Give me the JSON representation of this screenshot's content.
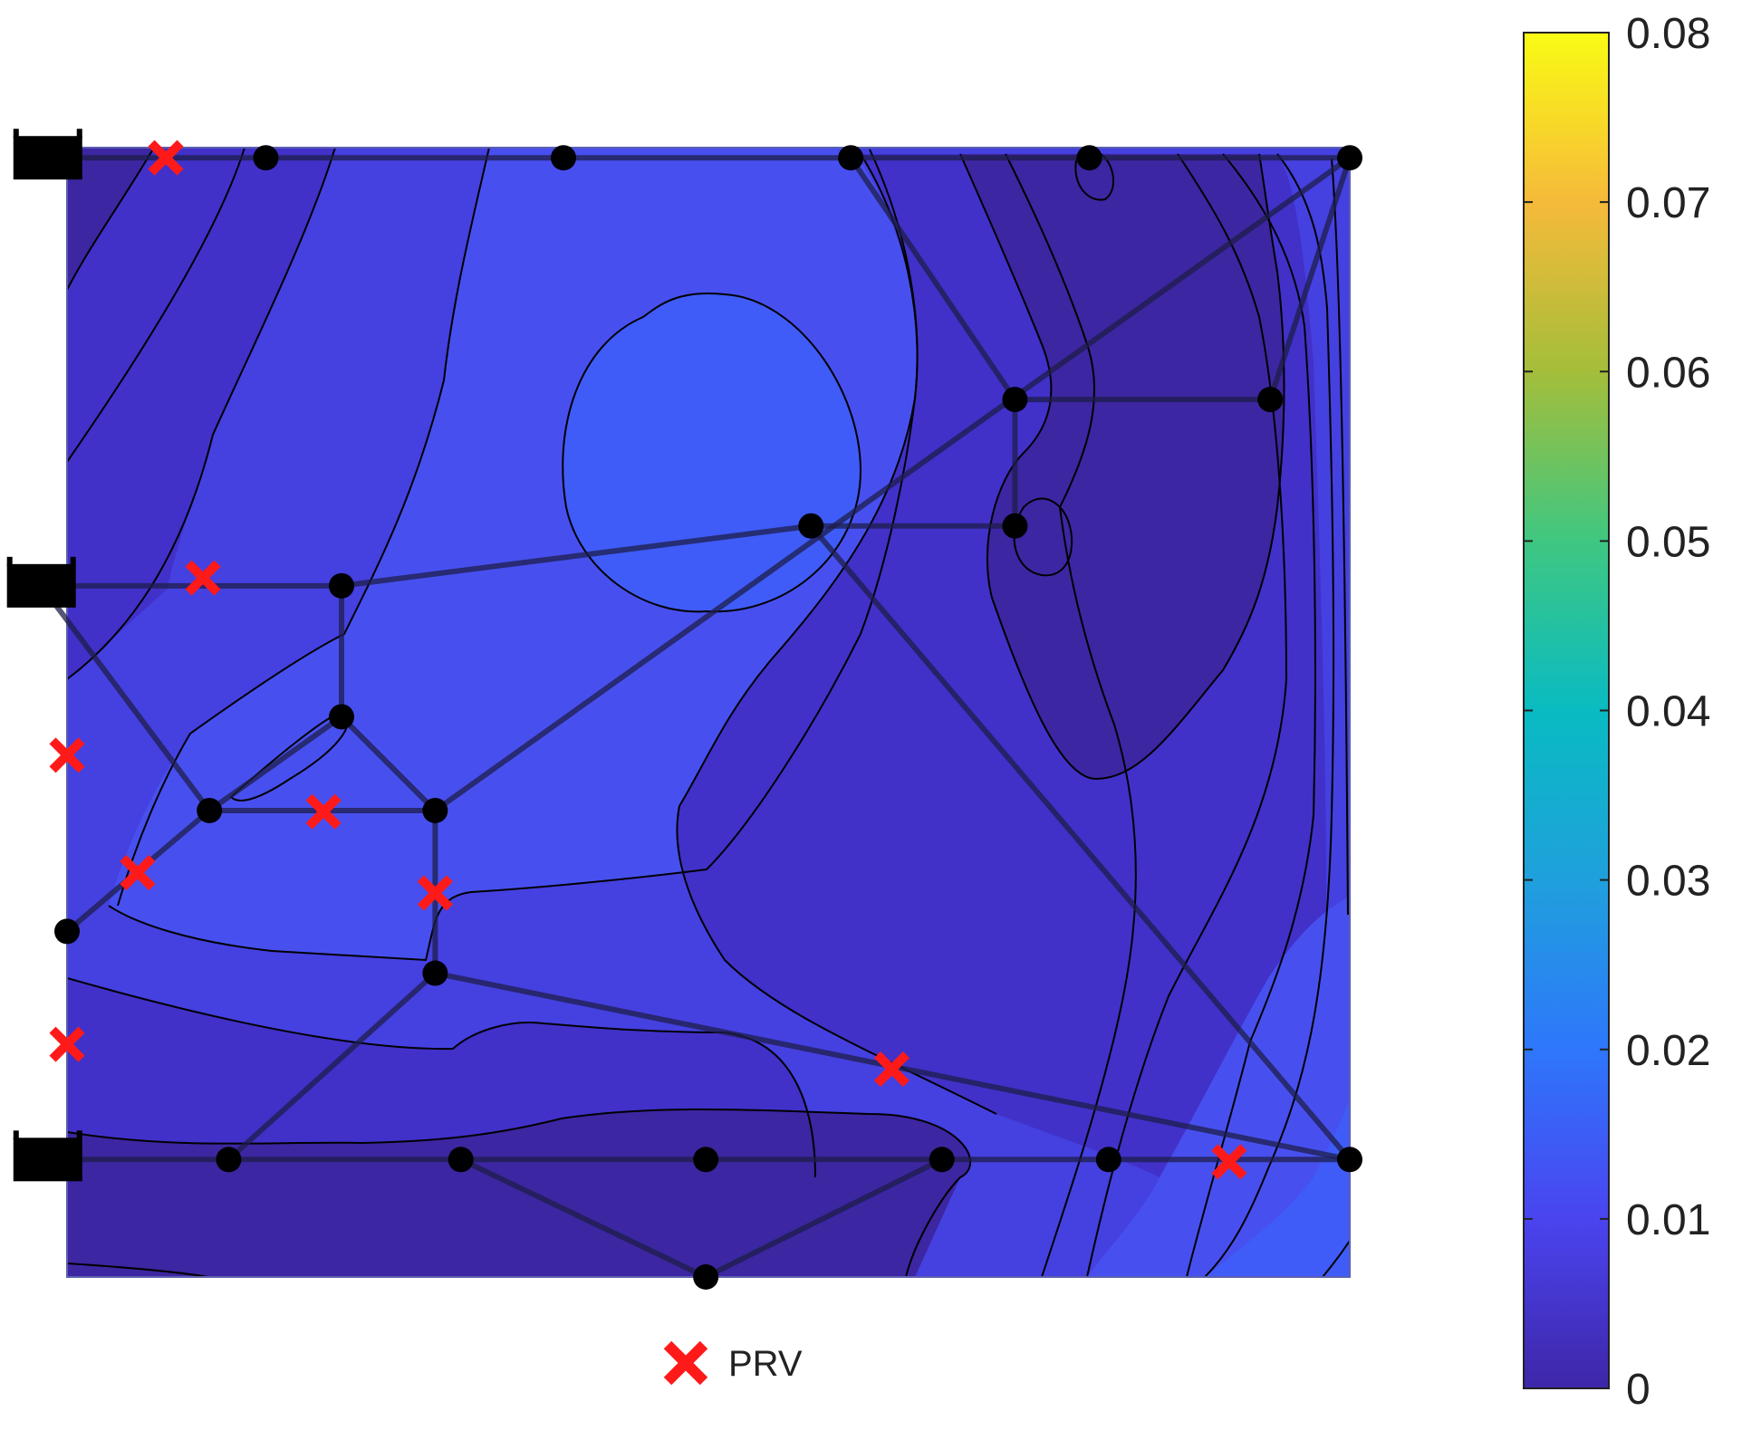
{
  "chart_data": {
    "type": "heatmap",
    "title": "",
    "xlabel": "",
    "ylabel": "",
    "colorbar": {
      "min": 0,
      "max": 0.08,
      "ticks": [
        "0",
        "0.01",
        "0.02",
        "0.03",
        "0.04",
        "0.05",
        "0.06",
        "0.07",
        "0.08"
      ],
      "colormap": "parula"
    },
    "map_extent": {
      "x": [
        0,
        100
      ],
      "y": [
        0,
        100
      ]
    },
    "field_colors": {
      "lowest": "#3d26a1",
      "level_1": "#4131c9",
      "level_2": "#4540e0",
      "level_3": "#4750ef",
      "highest": "#3f5cf8"
    },
    "nodes": [
      {
        "x": 15.5,
        "y": 99.1
      },
      {
        "x": 38.7,
        "y": 99.1
      },
      {
        "x": 61.1,
        "y": 99.1
      },
      {
        "x": 79.7,
        "y": 99.1
      },
      {
        "x": 100.0,
        "y": 99.1
      },
      {
        "x": 73.9,
        "y": 77.7
      },
      {
        "x": 93.8,
        "y": 77.7
      },
      {
        "x": 58.0,
        "y": 66.5
      },
      {
        "x": 73.9,
        "y": 66.5
      },
      {
        "x": 21.4,
        "y": 61.2
      },
      {
        "x": 21.4,
        "y": 49.6
      },
      {
        "x": 11.1,
        "y": 41.3
      },
      {
        "x": 28.7,
        "y": 41.3
      },
      {
        "x": 0.0,
        "y": 30.6
      },
      {
        "x": 28.7,
        "y": 26.9
      },
      {
        "x": 12.6,
        "y": 10.4
      },
      {
        "x": 30.7,
        "y": 10.4
      },
      {
        "x": 49.8,
        "y": 10.4
      },
      {
        "x": 68.2,
        "y": 10.4
      },
      {
        "x": 81.2,
        "y": 10.4
      },
      {
        "x": 100.0,
        "y": 10.4
      },
      {
        "x": 49.8,
        "y": 0.0
      }
    ],
    "pipes": [
      [
        -2,
        99.1,
        100.0,
        99.1
      ],
      [
        61.1,
        99.1,
        73.9,
        77.7
      ],
      [
        73.9,
        77.7,
        93.8,
        77.7
      ],
      [
        93.8,
        77.7,
        100.0,
        99.1
      ],
      [
        73.9,
        77.7,
        73.9,
        66.5
      ],
      [
        58.0,
        66.5,
        73.9,
        66.5
      ],
      [
        100.0,
        99.1,
        28.7,
        41.3
      ],
      [
        58.0,
        66.5,
        100.0,
        10.4
      ],
      [
        -2,
        61.2,
        21.4,
        61.2
      ],
      [
        21.4,
        61.2,
        58.0,
        66.5
      ],
      [
        21.4,
        61.2,
        21.4,
        49.6
      ],
      [
        21.4,
        49.6,
        28.7,
        41.3
      ],
      [
        21.4,
        49.6,
        11.1,
        41.3
      ],
      [
        11.1,
        41.3,
        28.7,
        41.3
      ],
      [
        -2,
        61.2,
        11.1,
        41.3
      ],
      [
        11.1,
        41.3,
        0.0,
        30.6
      ],
      [
        28.7,
        41.3,
        28.7,
        26.9
      ],
      [
        28.7,
        26.9,
        12.6,
        10.4
      ],
      [
        28.7,
        26.9,
        100.0,
        10.4
      ],
      [
        -2,
        10.4,
        100.0,
        10.4
      ],
      [
        30.7,
        10.4,
        49.8,
        0.0
      ],
      [
        49.8,
        0.0,
        68.2,
        10.4
      ]
    ],
    "reservoirs": [
      {
        "x": -1.5,
        "y": 99.1
      },
      {
        "x": -2.0,
        "y": 61.2
      },
      {
        "x": -1.5,
        "y": 10.4
      }
    ],
    "prvs": [
      {
        "x": 7.7,
        "y": 99.1
      },
      {
        "x": 10.6,
        "y": 61.9
      },
      {
        "x": 0.0,
        "y": 46.2
      },
      {
        "x": 5.5,
        "y": 35.8
      },
      {
        "x": 20.0,
        "y": 41.2
      },
      {
        "x": 28.7,
        "y": 34.0
      },
      {
        "x": 0.0,
        "y": 20.6
      },
      {
        "x": 64.3,
        "y": 18.4
      },
      {
        "x": 90.6,
        "y": 10.2
      }
    ],
    "legend": {
      "label": "PRV",
      "placement": "bottom-center"
    }
  }
}
